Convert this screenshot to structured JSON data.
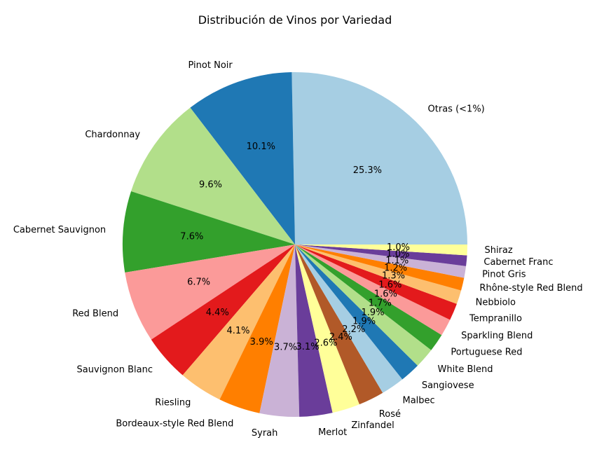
{
  "chart_data": {
    "type": "pie",
    "title": "Distribución de Vinos por Variedad",
    "start_angle_deg": 0,
    "direction": "counterclockwise",
    "slices": [
      {
        "label": "Otras (<1%)",
        "value": 25.3,
        "pct_label": "25.3%",
        "color": "#a6cee3"
      },
      {
        "label": "Pinot Noir",
        "value": 10.1,
        "pct_label": "10.1%",
        "color": "#1f78b4"
      },
      {
        "label": "Chardonnay",
        "value": 9.6,
        "pct_label": "9.6%",
        "color": "#b2df8a"
      },
      {
        "label": "Cabernet Sauvignon",
        "value": 7.6,
        "pct_label": "7.6%",
        "color": "#33a02c"
      },
      {
        "label": "Red Blend",
        "value": 6.7,
        "pct_label": "6.7%",
        "color": "#fb9a99"
      },
      {
        "label": "Sauvignon Blanc",
        "value": 4.4,
        "pct_label": "4.4%",
        "color": "#e31a1c"
      },
      {
        "label": "Riesling",
        "value": 4.1,
        "pct_label": "4.1%",
        "color": "#fdbf6f"
      },
      {
        "label": "Bordeaux-style Red Blend",
        "value": 3.9,
        "pct_label": "3.9%",
        "color": "#ff7f00"
      },
      {
        "label": "Syrah",
        "value": 3.7,
        "pct_label": "3.7%",
        "color": "#cab2d6"
      },
      {
        "label": "Merlot",
        "value": 3.1,
        "pct_label": "3.1%",
        "color": "#6a3d9a"
      },
      {
        "label": "Zinfandel",
        "value": 2.6,
        "pct_label": "2.6%",
        "color": "#ffff99"
      },
      {
        "label": "Rosé",
        "value": 2.4,
        "pct_label": "2.4%",
        "color": "#b15928"
      },
      {
        "label": "Malbec",
        "value": 2.2,
        "pct_label": "2.2%",
        "color": "#a6cee3"
      },
      {
        "label": "Sangiovese",
        "value": 1.9,
        "pct_label": "1.9%",
        "color": "#1f78b4"
      },
      {
        "label": "White Blend",
        "value": 1.9,
        "pct_label": "1.9%",
        "color": "#b2df8a"
      },
      {
        "label": "Portuguese Red",
        "value": 1.7,
        "pct_label": "1.7%",
        "color": "#33a02c"
      },
      {
        "label": "Sparkling Blend",
        "value": 1.6,
        "pct_label": "1.6%",
        "color": "#fb9a99"
      },
      {
        "label": "Tempranillo",
        "value": 1.6,
        "pct_label": "1.6%",
        "color": "#e31a1c"
      },
      {
        "label": "Nebbiolo",
        "value": 1.3,
        "pct_label": "1.3%",
        "color": "#fdbf6f"
      },
      {
        "label": "Rhône-style Red Blend",
        "value": 1.2,
        "pct_label": "1.2%",
        "color": "#ff7f00"
      },
      {
        "label": "Pinot Gris",
        "value": 1.1,
        "pct_label": "1.1%",
        "color": "#cab2d6"
      },
      {
        "label": "Cabernet Franc",
        "value": 1.0,
        "pct_label": "1.0%",
        "color": "#6a3d9a"
      },
      {
        "label": "Shiraz",
        "value": 1.0,
        "pct_label": "1.0%",
        "color": "#ffff99"
      }
    ]
  }
}
